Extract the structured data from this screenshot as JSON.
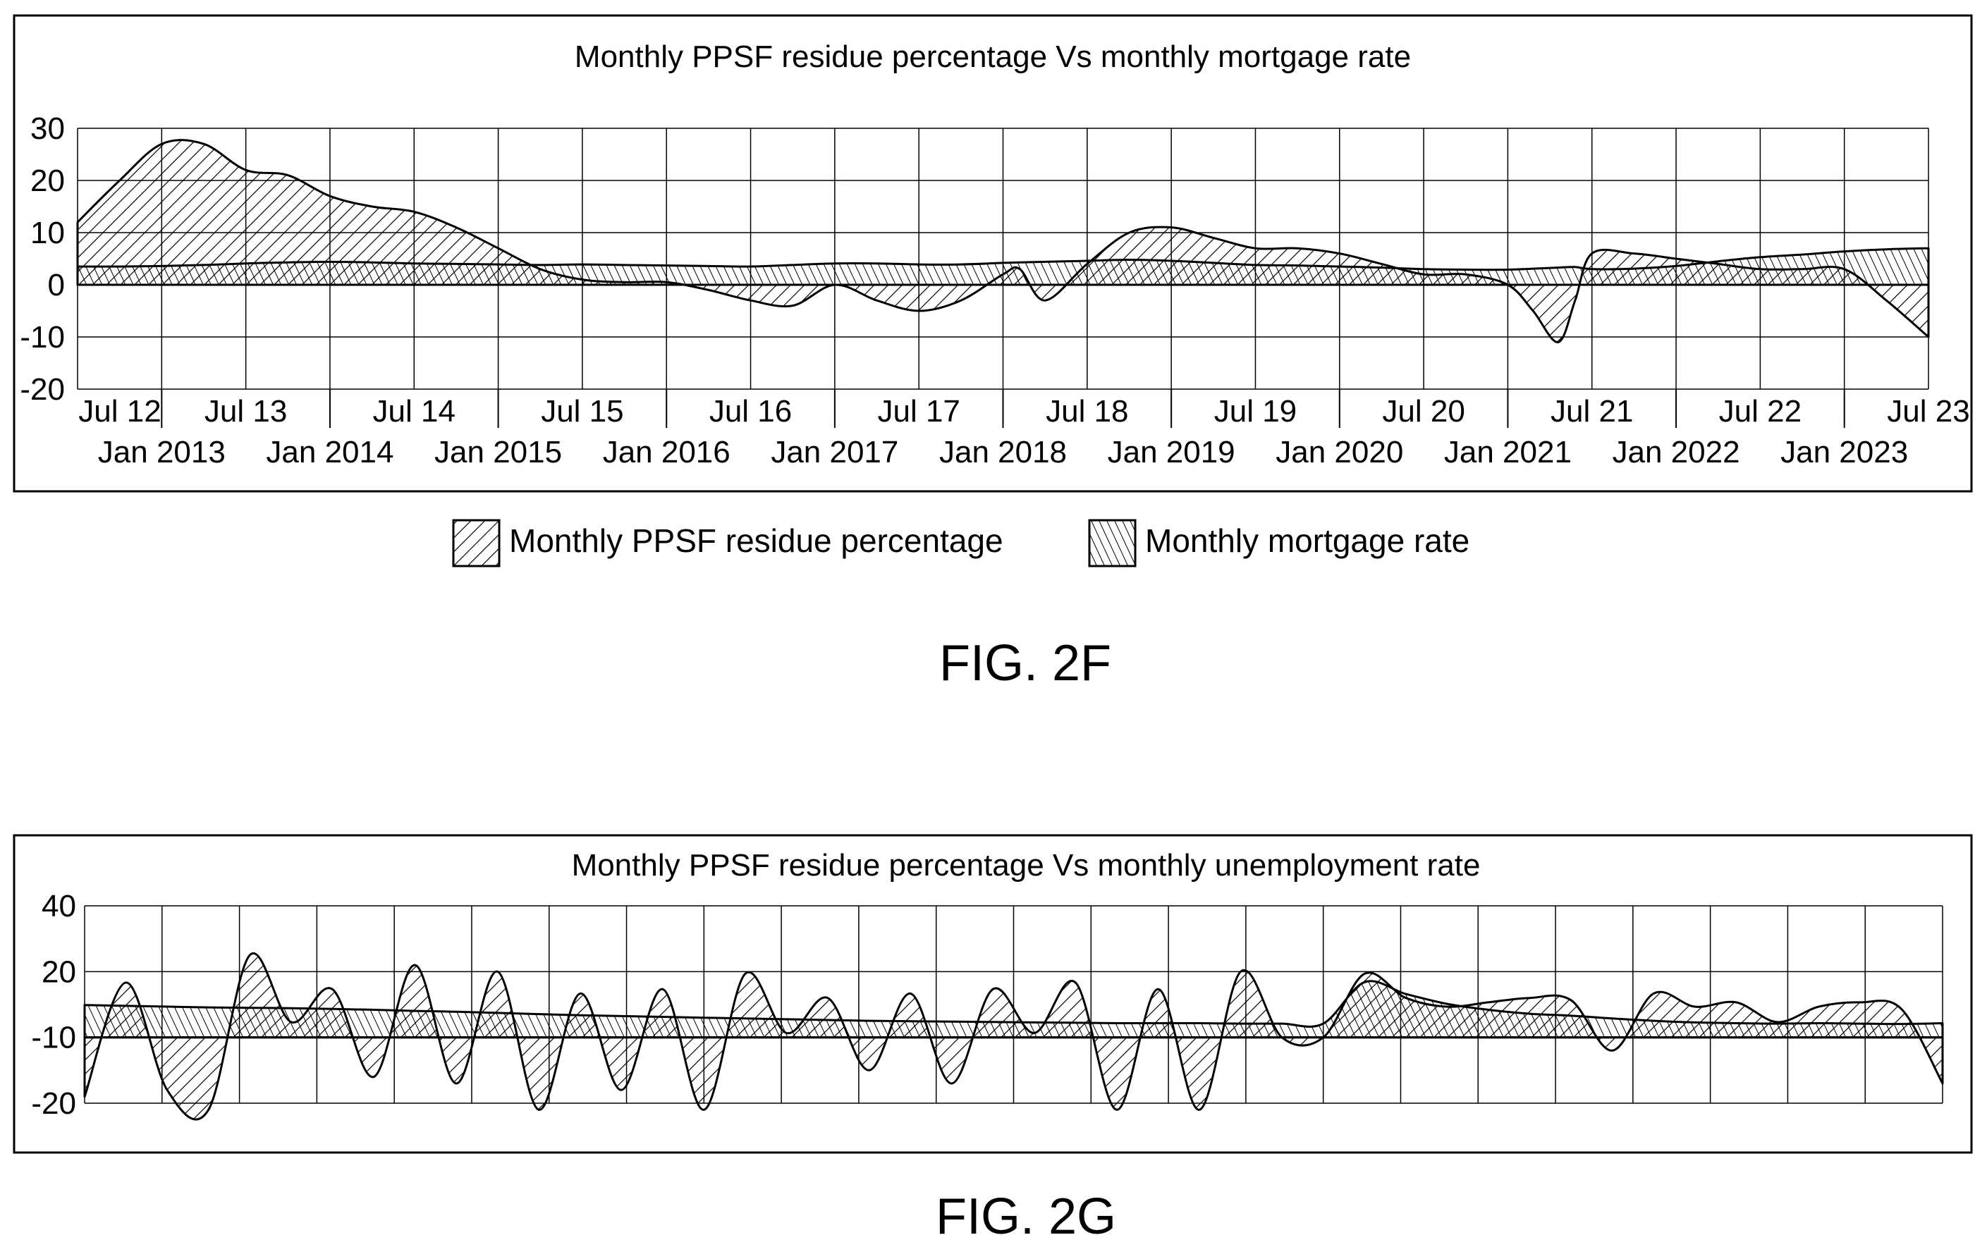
{
  "figures": [
    {
      "label": "FIG. 2F",
      "legend": [
        "Monthly PPSF residue percentage",
        "Monthly mortgage rate"
      ]
    },
    {
      "label": "FIG. 2G",
      "legend": []
    }
  ],
  "chart_data": [
    {
      "type": "area",
      "title": "Monthly PPSF residue percentage Vs monthly mortgage rate",
      "xlabel": "",
      "ylabel": "",
      "ylim": [
        -20,
        30
      ],
      "yticks": [
        "30",
        "20",
        "10",
        "0",
        "-10",
        "-20"
      ],
      "xticks_top": [
        "Jul 12",
        "Jul 13",
        "Jul 14",
        "Jul 15",
        "Jul 16",
        "Jul 17",
        "Jul 18",
        "Jul 19",
        "Jul 20",
        "Jul 21",
        "Jul 22",
        "Jul 23"
      ],
      "xticks_bottom": [
        "Jan 2013",
        "Jan 2014",
        "Jan 2015",
        "Jan 2016",
        "Jan 2017",
        "Jan 2018",
        "Jan 2019",
        "Jan 2020",
        "Jan 2021",
        "Jan 2022",
        "Jan 2023"
      ],
      "grid": true,
      "legend_position": "bottom",
      "x": [
        2012.5,
        2012.75,
        2013.0,
        2013.25,
        2013.5,
        2013.75,
        2014.0,
        2014.25,
        2014.5,
        2014.75,
        2015.0,
        2015.25,
        2015.5,
        2015.75,
        2016.0,
        2016.25,
        2016.5,
        2016.75,
        2017.0,
        2017.25,
        2017.5,
        2017.75,
        2018.0,
        2018.1,
        2018.25,
        2018.5,
        2018.75,
        2019.0,
        2019.25,
        2019.5,
        2019.75,
        2020.0,
        2020.25,
        2020.5,
        2020.75,
        2021.0,
        2021.15,
        2021.3,
        2021.4,
        2021.5,
        2021.75,
        2022.0,
        2022.25,
        2022.5,
        2022.75,
        2023.0,
        2023.25,
        2023.5
      ],
      "series": [
        {
          "name": "Monthly PPSF residue percentage",
          "values": [
            12,
            20,
            27,
            27,
            22,
            21,
            17,
            15,
            14,
            11,
            7,
            3,
            1,
            0.5,
            0.5,
            -1,
            -3,
            -4,
            0,
            -3,
            -5,
            -3,
            2,
            3,
            -3,
            4,
            10,
            11,
            9,
            7,
            7,
            6,
            4,
            2,
            2,
            0,
            -5,
            -11,
            -3,
            6,
            6,
            5,
            4,
            3,
            3,
            3,
            -3,
            -10
          ]
        },
        {
          "name": "Monthly mortgage rate",
          "values": [
            3.5,
            3.5,
            3.6,
            3.8,
            4.1,
            4.3,
            4.4,
            4.3,
            4.1,
            4.0,
            3.9,
            3.8,
            3.9,
            3.8,
            3.7,
            3.6,
            3.5,
            3.8,
            4.1,
            4.1,
            3.9,
            3.9,
            4.2,
            4.3,
            4.4,
            4.6,
            4.8,
            4.6,
            4.2,
            3.8,
            3.7,
            3.5,
            3.3,
            3.0,
            2.9,
            2.9,
            3.1,
            3.3,
            3.4,
            3.0,
            3.1,
            3.6,
            4.5,
            5.3,
            5.8,
            6.4,
            6.8,
            7.0
          ]
        }
      ]
    },
    {
      "type": "area",
      "title": "Monthly PPSF residue percentage Vs monthly unemployment rate",
      "xlabel": "",
      "ylabel": "",
      "ylim": [
        -20,
        40
      ],
      "yticks": [
        "40",
        "20",
        "-10",
        "-20"
      ],
      "grid": true,
      "x": [
        0,
        3,
        6,
        9,
        12,
        15,
        18,
        21,
        24,
        27,
        30,
        33,
        36,
        39,
        42,
        45,
        48,
        51,
        54,
        57,
        60,
        63,
        66,
        69,
        72,
        75,
        78,
        81,
        84,
        87,
        90,
        93,
        96,
        99,
        102,
        105,
        108,
        111,
        114,
        117,
        120,
        123,
        126,
        129,
        132,
        135
      ],
      "series": [
        {
          "name": "",
          "values": [
            -19,
            15,
            -18,
            -21,
            25,
            -3,
            12,
            -16,
            22,
            -17,
            20,
            -21,
            10,
            -18,
            12,
            -21,
            19,
            -8,
            8,
            -15,
            10,
            -17,
            12,
            -8,
            15,
            -21,
            12,
            -21,
            20,
            -10,
            -10,
            19,
            8,
            4,
            6,
            8,
            7,
            -12,
            10,
            4,
            6,
            -3,
            4,
            6,
            3,
            -17
          ]
        },
        {
          "name": "",
          "values": [
            8.2,
            8.0,
            7.8,
            7.6,
            7.5,
            7.4,
            7.2,
            7.0,
            6.7,
            6.5,
            6.2,
            5.9,
            5.6,
            5.4,
            5.2,
            5.0,
            4.8,
            4.6,
            4.4,
            4.2,
            4.1,
            4.0,
            3.9,
            3.8,
            3.7,
            3.6,
            3.6,
            3.6,
            3.5,
            3.5,
            3.5,
            14.0,
            11.0,
            8.5,
            7.0,
            6.0,
            5.5,
            4.8,
            4.2,
            3.8,
            3.6,
            3.5,
            3.6,
            3.5,
            3.4,
            3.6
          ]
        }
      ]
    }
  ]
}
